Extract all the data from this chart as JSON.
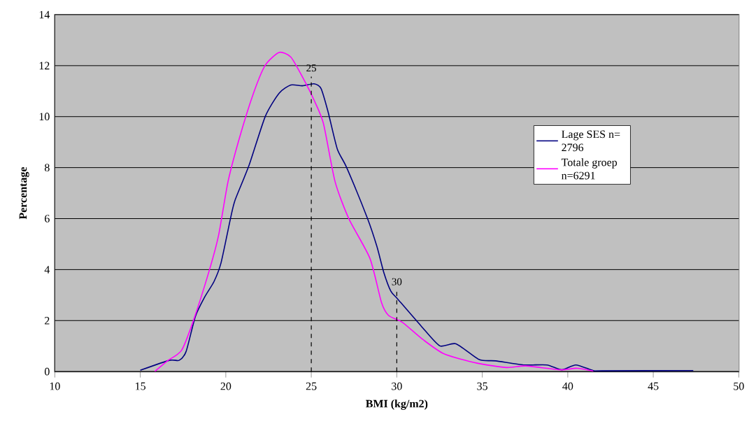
{
  "chart_data": {
    "type": "line",
    "xlabel": "BMI (kg/m2)",
    "ylabel": "Percentage",
    "xlim": [
      10,
      50
    ],
    "ylim": [
      0,
      14
    ],
    "xticks": [
      10,
      15,
      20,
      25,
      30,
      35,
      40,
      45,
      50
    ],
    "yticks": [
      0,
      2,
      4,
      6,
      8,
      10,
      12,
      14
    ],
    "grid": "y",
    "legend": "right",
    "marker": "none",
    "line_style": "solid",
    "ref_lines": [
      {
        "axis": "x",
        "value": 25,
        "label": "25",
        "color": "#000000",
        "line_style": "dashed"
      },
      {
        "axis": "x",
        "value": 30,
        "label": "30",
        "color": "#000000",
        "line_style": "dashed"
      }
    ],
    "series": [
      {
        "name": "Lage SES n= 2796",
        "color": "#000080",
        "x": [
          15.0,
          16.7,
          17.27,
          17.68,
          18.22,
          18.77,
          19.31,
          19.72,
          20.27,
          20.54,
          21.36,
          22.31,
          23.12,
          23.8,
          24.48,
          25.16,
          25.57,
          25.98,
          26.52,
          27.07,
          28.29,
          28.84,
          29.24,
          29.65,
          30.06,
          31.42,
          32.51,
          33.46,
          34.82,
          35.78,
          37.41,
          38.77,
          39.65,
          40.47,
          41.49,
          42.0,
          47.34
        ],
        "values": [
          0.05,
          0.44,
          0.44,
          0.79,
          2.16,
          2.93,
          3.53,
          4.26,
          5.99,
          6.72,
          8.09,
          10.01,
          10.92,
          11.24,
          11.21,
          11.29,
          11.1,
          10.19,
          8.73,
          8.0,
          6.0,
          4.9,
          3.89,
          3.16,
          2.84,
          1.79,
          1.01,
          1.09,
          0.47,
          0.42,
          0.26,
          0.26,
          0.07,
          0.26,
          0.04,
          0.03,
          0.04
        ]
      },
      {
        "name": "Totale groep n=6291",
        "color": "#ff00ff",
        "x": [
          15.84,
          16.59,
          17.41,
          18.09,
          19.04,
          19.58,
          20.13,
          20.81,
          21.62,
          22.31,
          23.12,
          23.8,
          24.48,
          25.16,
          25.71,
          26.39,
          27.2,
          28.43,
          29.11,
          29.52,
          30.33,
          31.56,
          32.78,
          34.69,
          36.43,
          37.53,
          39.58,
          40.53,
          41.49
        ],
        "values": [
          0.0,
          0.42,
          0.83,
          1.97,
          3.98,
          5.35,
          7.45,
          9.19,
          10.92,
          12.02,
          12.52,
          12.34,
          11.56,
          10.65,
          9.73,
          7.45,
          5.99,
          4.44,
          2.7,
          2.2,
          1.93,
          1.24,
          0.69,
          0.33,
          0.16,
          0.22,
          0.07,
          0.13,
          0.02
        ]
      }
    ]
  }
}
